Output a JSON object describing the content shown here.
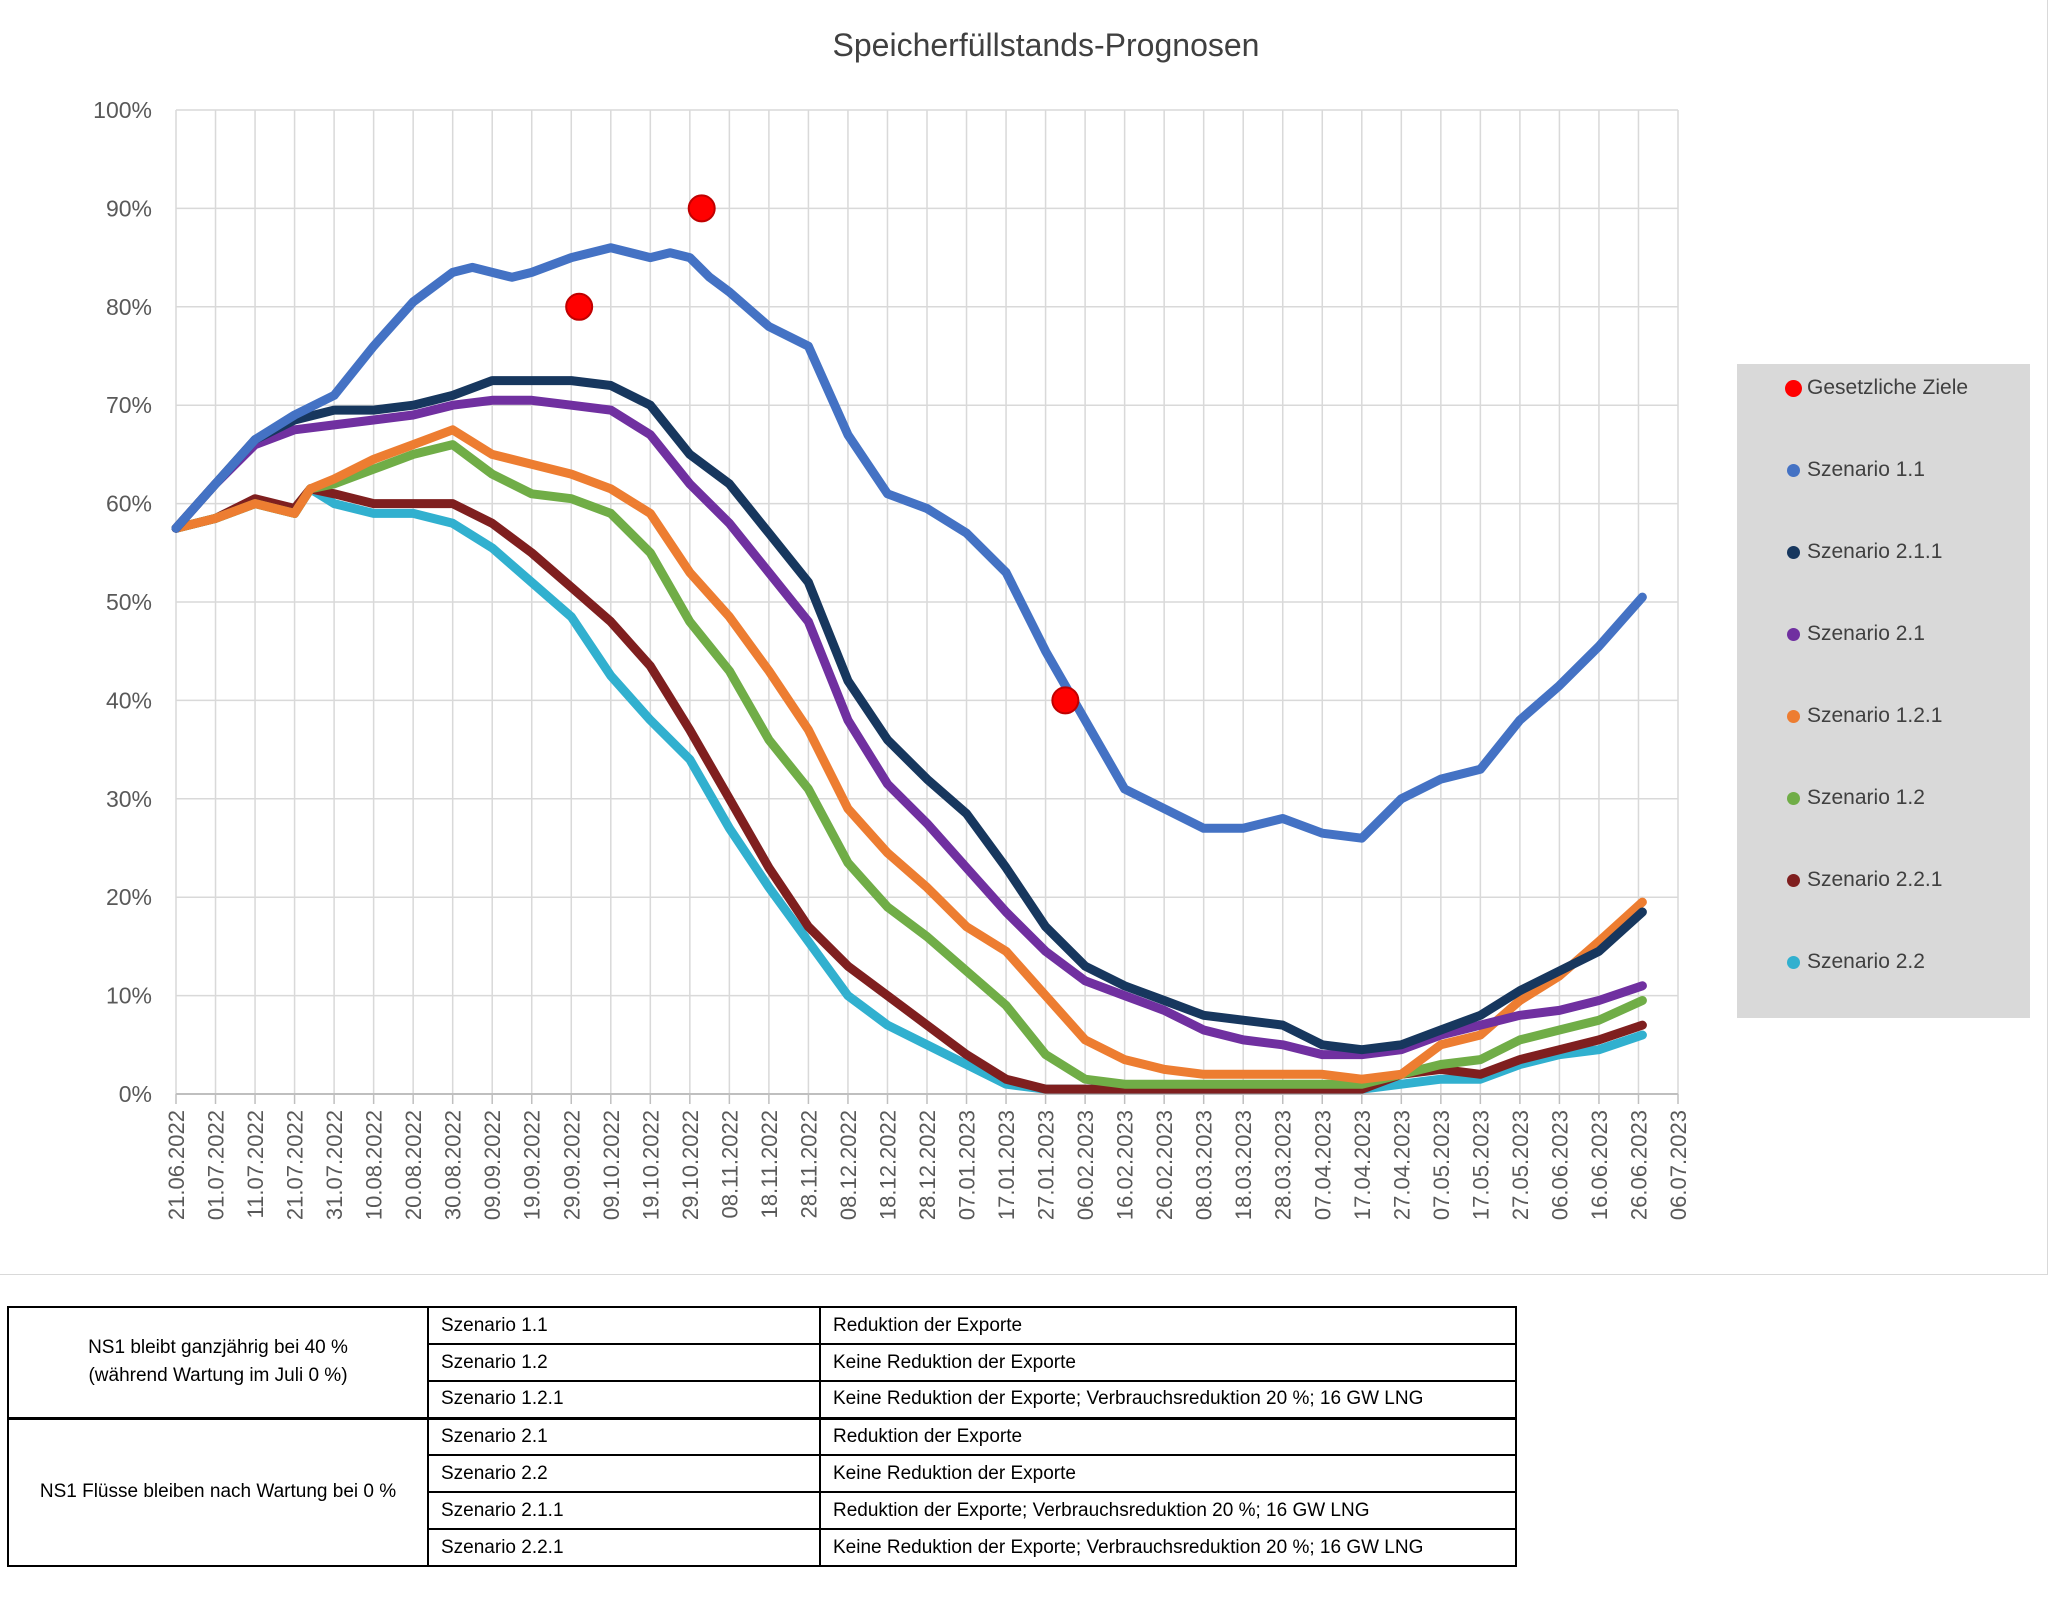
{
  "chart_data": {
    "type": "line",
    "title": "Speicherfüllstands-Prognosen",
    "x_axis": {
      "type": "date",
      "range": [
        "21.06.2022",
        "06.07.2023"
      ],
      "tick_labels": [
        "21.06.2022",
        "01.07.2022",
        "11.07.2022",
        "21.07.2022",
        "31.07.2022",
        "10.08.2022",
        "20.08.2022",
        "30.08.2022",
        "09.09.2022",
        "19.09.2022",
        "29.09.2022",
        "09.10.2022",
        "19.10.2022",
        "29.10.2022",
        "08.11.2022",
        "18.11.2022",
        "28.11.2022",
        "08.12.2022",
        "18.12.2022",
        "28.12.2022",
        "07.01.2023",
        "17.01.2023",
        "27.01.2023",
        "06.02.2023",
        "16.02.2023",
        "26.02.2023",
        "08.03.2023",
        "18.03.2023",
        "28.03.2023",
        "07.04.2023",
        "17.04.2023",
        "27.04.2023",
        "07.05.2023",
        "17.05.2023",
        "27.05.2023",
        "06.06.2023",
        "16.06.2023",
        "26.06.2023",
        "06.07.2023"
      ]
    },
    "y_axis": {
      "range": [
        0,
        100
      ],
      "tick_labels": [
        "0%",
        "10%",
        "20%",
        "30%",
        "40%",
        "50%",
        "60%",
        "70%",
        "80%",
        "90%",
        "100%"
      ]
    },
    "grid": "both",
    "legend": {
      "position": "right"
    },
    "series": [
      {
        "name": "Szenario 1.1",
        "color": "#4472c4",
        "x": [
          "21.06.2022",
          "01.07.2022",
          "11.07.2022",
          "21.07.2022",
          "31.07.2022",
          "10.08.2022",
          "20.08.2022",
          "30.08.2022",
          "04.09.2022",
          "09.09.2022",
          "14.09.2022",
          "19.09.2022",
          "29.09.2022",
          "09.10.2022",
          "19.10.2022",
          "24.10.2022",
          "29.10.2022",
          "03.11.2022",
          "08.11.2022",
          "18.11.2022",
          "28.11.2022",
          "08.12.2022",
          "18.12.2022",
          "28.12.2022",
          "07.01.2023",
          "17.01.2023",
          "27.01.2023",
          "06.02.2023",
          "16.02.2023",
          "26.02.2023",
          "08.03.2023",
          "18.03.2023",
          "28.03.2023",
          "07.04.2023",
          "17.04.2023",
          "27.04.2023",
          "07.05.2023",
          "17.05.2023",
          "27.05.2023",
          "06.06.2023",
          "16.06.2023",
          "27.06.2023"
        ],
        "y": [
          57.5,
          62,
          66.5,
          69,
          71,
          76,
          80.5,
          83.5,
          84,
          83.5,
          83,
          83.5,
          85,
          86,
          85,
          85.5,
          85,
          83,
          81.5,
          78,
          76,
          67,
          61,
          59.5,
          57,
          53,
          45,
          38,
          31,
          29,
          27,
          27,
          28,
          26.5,
          26,
          30,
          32,
          33,
          38,
          41.5,
          45.5,
          50.5
        ]
      },
      {
        "name": "Szenario 2.1.1",
        "color": "#17375e",
        "x": [
          "21.06.2022",
          "01.07.2022",
          "11.07.2022",
          "21.07.2022",
          "31.07.2022",
          "10.08.2022",
          "20.08.2022",
          "30.08.2022",
          "09.09.2022",
          "19.09.2022",
          "29.09.2022",
          "09.10.2022",
          "19.10.2022",
          "29.10.2022",
          "08.11.2022",
          "18.11.2022",
          "28.11.2022",
          "08.12.2022",
          "18.12.2022",
          "28.12.2022",
          "07.01.2023",
          "17.01.2023",
          "27.01.2023",
          "06.02.2023",
          "16.02.2023",
          "26.02.2023",
          "08.03.2023",
          "18.03.2023",
          "28.03.2023",
          "07.04.2023",
          "17.04.2023",
          "27.04.2023",
          "07.05.2023",
          "17.05.2023",
          "27.05.2023",
          "06.06.2023",
          "16.06.2023",
          "27.06.2023"
        ],
        "y": [
          57.5,
          62,
          66.5,
          68.5,
          69.5,
          69.5,
          70,
          71,
          72.5,
          72.5,
          72.5,
          72,
          70,
          65,
          62,
          57,
          52,
          42,
          36,
          32,
          28.5,
          23,
          17,
          13,
          11,
          9.5,
          8,
          7.5,
          7,
          5,
          4.5,
          5,
          6.5,
          8,
          10.5,
          12.5,
          14.5,
          18.5
        ]
      },
      {
        "name": "Szenario 2.1",
        "color": "#7030a0",
        "x": [
          "21.06.2022",
          "01.07.2022",
          "11.07.2022",
          "21.07.2022",
          "31.07.2022",
          "10.08.2022",
          "20.08.2022",
          "30.08.2022",
          "09.09.2022",
          "19.09.2022",
          "29.09.2022",
          "09.10.2022",
          "19.10.2022",
          "29.10.2022",
          "08.11.2022",
          "18.11.2022",
          "28.11.2022",
          "08.12.2022",
          "18.12.2022",
          "28.12.2022",
          "07.01.2023",
          "17.01.2023",
          "27.01.2023",
          "06.02.2023",
          "16.02.2023",
          "26.02.2023",
          "08.03.2023",
          "18.03.2023",
          "28.03.2023",
          "07.04.2023",
          "17.04.2023",
          "27.04.2023",
          "07.05.2023",
          "17.05.2023",
          "27.05.2023",
          "06.06.2023",
          "16.06.2023",
          "27.06.2023"
        ],
        "y": [
          57.5,
          62,
          66,
          67.5,
          68,
          68.5,
          69,
          70,
          70.5,
          70.5,
          70,
          69.5,
          67,
          62,
          58,
          53,
          48,
          38,
          31.5,
          27.5,
          23,
          18.5,
          14.5,
          11.5,
          10,
          8.5,
          6.5,
          5.5,
          5,
          4,
          4,
          4.5,
          6,
          7,
          8,
          8.5,
          9.5,
          11
        ]
      },
      {
        "name": "Szenario 1.2.1",
        "color": "#ed7d31",
        "x": [
          "21.06.2022",
          "01.07.2022",
          "11.07.2022",
          "21.07.2022",
          "25.07.2022",
          "31.07.2022",
          "10.08.2022",
          "20.08.2022",
          "30.08.2022",
          "09.09.2022",
          "19.09.2022",
          "29.09.2022",
          "09.10.2022",
          "19.10.2022",
          "29.10.2022",
          "08.11.2022",
          "18.11.2022",
          "28.11.2022",
          "08.12.2022",
          "18.12.2022",
          "28.12.2022",
          "07.01.2023",
          "17.01.2023",
          "27.01.2023",
          "06.02.2023",
          "16.02.2023",
          "26.02.2023",
          "08.03.2023",
          "18.03.2023",
          "28.03.2023",
          "07.04.2023",
          "17.04.2023",
          "27.04.2023",
          "07.05.2023",
          "17.05.2023",
          "27.05.2023",
          "06.06.2023",
          "16.06.2023",
          "27.06.2023"
        ],
        "y": [
          57.5,
          58.5,
          60,
          59,
          61.5,
          62.5,
          64.5,
          66,
          67.5,
          65,
          64,
          63,
          61.5,
          59,
          53,
          48.5,
          43,
          37,
          29,
          24.5,
          21,
          17,
          14.5,
          10,
          5.5,
          3.5,
          2.5,
          2,
          2,
          2,
          2,
          1.5,
          2,
          5,
          6,
          9.5,
          12,
          15.5,
          19.5
        ]
      },
      {
        "name": "Szenario 1.2",
        "color": "#70ad47",
        "x": [
          "21.06.2022",
          "01.07.2022",
          "11.07.2022",
          "21.07.2022",
          "25.07.2022",
          "31.07.2022",
          "10.08.2022",
          "20.08.2022",
          "30.08.2022",
          "09.09.2022",
          "19.09.2022",
          "29.09.2022",
          "09.10.2022",
          "19.10.2022",
          "29.10.2022",
          "08.11.2022",
          "18.11.2022",
          "28.11.2022",
          "08.12.2022",
          "18.12.2022",
          "28.12.2022",
          "07.01.2023",
          "17.01.2023",
          "27.01.2023",
          "06.02.2023",
          "16.02.2023",
          "26.02.2023",
          "08.03.2023",
          "18.03.2023",
          "28.03.2023",
          "07.04.2023",
          "17.04.2023",
          "27.04.2023",
          "07.05.2023",
          "17.05.2023",
          "27.05.2023",
          "06.06.2023",
          "16.06.2023",
          "27.06.2023"
        ],
        "y": [
          57.5,
          58.5,
          60,
          59,
          61.5,
          62,
          63.5,
          65,
          66,
          63,
          61,
          60.5,
          59,
          55,
          48,
          43,
          36,
          31,
          23.5,
          19,
          16,
          12.5,
          9,
          4,
          1.5,
          1,
          1,
          1,
          1,
          1,
          1,
          1,
          2,
          3,
          3.5,
          5.5,
          6.5,
          7.5,
          9.5
        ]
      },
      {
        "name": "Szenario 2.2.1",
        "color": "#7f1f1f",
        "x": [
          "21.06.2022",
          "01.07.2022",
          "11.07.2022",
          "21.07.2022",
          "25.07.2022",
          "31.07.2022",
          "10.08.2022",
          "20.08.2022",
          "30.08.2022",
          "09.09.2022",
          "19.09.2022",
          "29.09.2022",
          "09.10.2022",
          "19.10.2022",
          "29.10.2022",
          "08.11.2022",
          "18.11.2022",
          "28.11.2022",
          "08.12.2022",
          "18.12.2022",
          "28.12.2022",
          "07.01.2023",
          "17.01.2023",
          "27.01.2023",
          "06.02.2023",
          "16.02.2023",
          "26.02.2023",
          "08.03.2023",
          "18.03.2023",
          "28.03.2023",
          "07.04.2023",
          "17.04.2023",
          "27.04.2023",
          "07.05.2023",
          "17.05.2023",
          "27.05.2023",
          "06.06.2023",
          "16.06.2023",
          "27.06.2023"
        ],
        "y": [
          57.5,
          58.5,
          60.5,
          59.5,
          61.5,
          61,
          60,
          60,
          60,
          58,
          55,
          51.5,
          48,
          43.5,
          37,
          30,
          23,
          17,
          13,
          10,
          7,
          4,
          1.5,
          0.5,
          0.5,
          0.5,
          0.5,
          0.5,
          0.5,
          0.5,
          0.5,
          0.5,
          2,
          2.5,
          2,
          3.5,
          4.5,
          5.5,
          7
        ]
      },
      {
        "name": "Szenario 2.2",
        "color": "#31b0cf",
        "x": [
          "21.06.2022",
          "01.07.2022",
          "11.07.2022",
          "21.07.2022",
          "25.07.2022",
          "31.07.2022",
          "10.08.2022",
          "20.08.2022",
          "30.08.2022",
          "09.09.2022",
          "19.09.2022",
          "29.09.2022",
          "09.10.2022",
          "19.10.2022",
          "29.10.2022",
          "08.11.2022",
          "18.11.2022",
          "28.11.2022",
          "08.12.2022",
          "18.12.2022",
          "28.12.2022",
          "07.01.2023",
          "17.01.2023",
          "27.01.2023",
          "06.02.2023",
          "16.02.2023",
          "26.02.2023",
          "08.03.2023",
          "18.03.2023",
          "28.03.2023",
          "07.04.2023",
          "17.04.2023",
          "27.04.2023",
          "07.05.2023",
          "17.05.2023",
          "27.05.2023",
          "06.06.2023",
          "16.06.2023",
          "27.06.2023"
        ],
        "y": [
          57.5,
          58.5,
          60,
          59,
          61.5,
          60,
          59,
          59,
          58,
          55.5,
          52,
          48.5,
          42.5,
          38,
          34,
          27,
          21,
          15.5,
          10,
          7,
          5,
          3,
          1,
          0.5,
          0.5,
          0.5,
          0.5,
          0.5,
          0.5,
          0.5,
          0.5,
          0.5,
          1,
          1.5,
          1.5,
          3,
          4,
          4.5,
          6
        ]
      }
    ],
    "points": {
      "name": "Gesetzliche Ziele",
      "color": "#ff0000",
      "x": [
        "01.10.2022",
        "01.11.2022",
        "01.02.2023"
      ],
      "y": [
        80,
        90,
        40
      ]
    }
  },
  "legend": {
    "items": [
      {
        "label": "Gesetzliche Ziele",
        "color": "#ff0000"
      },
      {
        "label": "Szenario 1.1",
        "color": "#4472c4"
      },
      {
        "label": "Szenario 2.1.1",
        "color": "#17375e"
      },
      {
        "label": "Szenario 2.1",
        "color": "#7030a0"
      },
      {
        "label": "Szenario 1.2.1",
        "color": "#ed7d31"
      },
      {
        "label": "Szenario 1.2",
        "color": "#70ad47"
      },
      {
        "label": "Szenario 2.2.1",
        "color": "#7f1f1f"
      },
      {
        "label": "Szenario 2.2",
        "color": "#31b0cf"
      }
    ]
  },
  "table": {
    "groups": [
      {
        "label": "NS1 bleibt ganzjährig bei 40 %\n(während Wartung im Juli 0 %)",
        "rows": [
          {
            "scenario": "Szenario 1.1",
            "description": "Reduktion der Exporte"
          },
          {
            "scenario": "Szenario 1.2",
            "description": "Keine Reduktion der Exporte"
          },
          {
            "scenario": "Szenario 1.2.1",
            "description": "Keine Reduktion der Exporte; Verbrauchsreduktion 20 %; 16 GW LNG"
          }
        ]
      },
      {
        "label": "NS1 Flüsse bleiben nach Wartung bei 0 %",
        "rows": [
          {
            "scenario": "Szenario 2.1",
            "description": "Reduktion der Exporte"
          },
          {
            "scenario": "Szenario 2.2",
            "description": "Keine Reduktion der Exporte"
          },
          {
            "scenario": "Szenario 2.1.1",
            "description": "Reduktion der Exporte; Verbrauchsreduktion 20 %; 16 GW LNG"
          },
          {
            "scenario": "Szenario 2.2.1",
            "description": "Keine Reduktion der Exporte; Verbrauchsreduktion 20 %; 16 GW LNG"
          }
        ]
      }
    ]
  }
}
